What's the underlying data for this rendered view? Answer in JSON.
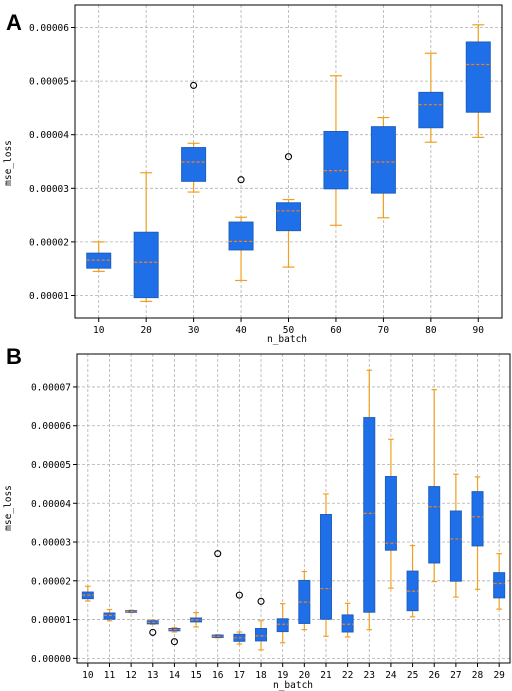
{
  "chart_data": [
    {
      "type": "boxplot",
      "panel": "A",
      "xlabel": "n_batch",
      "ylabel": "mse_loss",
      "ylim": [
        5.8e-06,
        6.42e-05
      ],
      "yticks": [
        1e-05,
        2e-05,
        3e-05,
        4e-05,
        5e-05,
        6e-05
      ],
      "ytick_labels": [
        "0.00001",
        "0.00002",
        "0.00003",
        "0.00004",
        "0.00005",
        "0.00006"
      ],
      "grid": true,
      "box_color": "#1f6fe8",
      "whisker_color": "#f0a020",
      "median_color": "#ff7f0e",
      "categories": [
        "10",
        "20",
        "30",
        "40",
        "50",
        "60",
        "70",
        "80",
        "90"
      ],
      "boxes": [
        {
          "min": 1.45e-05,
          "q1": 1.51e-05,
          "median": 1.66e-05,
          "q3": 1.79e-05,
          "max": 2e-05,
          "fliers": []
        },
        {
          "min": 8.9e-06,
          "q1": 9.6e-06,
          "median": 1.62e-05,
          "q3": 2.18e-05,
          "max": 3.29e-05,
          "fliers": []
        },
        {
          "min": 2.93e-05,
          "q1": 3.13e-05,
          "median": 3.49e-05,
          "q3": 3.76e-05,
          "max": 3.84e-05,
          "fliers": [
            4.92e-05
          ]
        },
        {
          "min": 1.28e-05,
          "q1": 1.85e-05,
          "median": 2.01e-05,
          "q3": 2.37e-05,
          "max": 2.46e-05,
          "fliers": [
            3.16e-05
          ]
        },
        {
          "min": 1.53e-05,
          "q1": 2.21e-05,
          "median": 2.58e-05,
          "q3": 2.73e-05,
          "max": 2.79e-05,
          "fliers": [
            3.59e-05
          ]
        },
        {
          "min": 2.31e-05,
          "q1": 2.99e-05,
          "median": 3.33e-05,
          "q3": 4.06e-05,
          "max": 5.1e-05,
          "fliers": []
        },
        {
          "min": 2.45e-05,
          "q1": 2.91e-05,
          "median": 3.49e-05,
          "q3": 4.15e-05,
          "max": 4.32e-05,
          "fliers": []
        },
        {
          "min": 3.86e-05,
          "q1": 4.13e-05,
          "median": 4.56e-05,
          "q3": 4.79e-05,
          "max": 5.52e-05,
          "fliers": []
        },
        {
          "min": 3.95e-05,
          "q1": 4.42e-05,
          "median": 5.31e-05,
          "q3": 5.73e-05,
          "max": 6.05e-05,
          "fliers": []
        }
      ]
    },
    {
      "type": "boxplot",
      "panel": "B",
      "xlabel": "n_batch",
      "ylabel": "mse_loss",
      "ylim": [
        -1.2e-06,
        7.85e-05
      ],
      "yticks": [
        0.0,
        1e-05,
        2e-05,
        3e-05,
        4e-05,
        5e-05,
        6e-05,
        7e-05
      ],
      "ytick_labels": [
        "0.00000",
        "0.00001",
        "0.00002",
        "0.00003",
        "0.00004",
        "0.00005",
        "0.00006",
        "0.00007"
      ],
      "grid": true,
      "box_color": "#1f6fe8",
      "whisker_color": "#f0a020",
      "median_color": "#ff7f0e",
      "categories": [
        "10",
        "11",
        "12",
        "13",
        "14",
        "15",
        "16",
        "17",
        "18",
        "19",
        "20",
        "21",
        "22",
        "23",
        "24",
        "25",
        "26",
        "27",
        "28",
        "29"
      ],
      "boxes": [
        {
          "min": 1.48e-05,
          "q1": 1.54e-05,
          "median": 1.63e-05,
          "q3": 1.71e-05,
          "max": 1.86e-05,
          "fliers": []
        },
        {
          "min": 9.7e-06,
          "q1": 1.01e-05,
          "median": 1.11e-05,
          "q3": 1.17e-05,
          "max": 1.26e-05,
          "fliers": []
        },
        {
          "min": 1.18e-05,
          "q1": 1.19e-05,
          "median": 1.21e-05,
          "q3": 1.23e-05,
          "max": 1.24e-05,
          "fliers": []
        },
        {
          "min": 8.8e-06,
          "q1": 8.9e-06,
          "median": 9.3e-06,
          "q3": 9.7e-06,
          "max": 9.9e-06,
          "fliers": [
            6.7e-06
          ]
        },
        {
          "min": 6.8e-06,
          "q1": 7.1e-06,
          "median": 7.4e-06,
          "q3": 7.7e-06,
          "max": 7.9e-06,
          "fliers": [
            4.3e-06
          ]
        },
        {
          "min": 8.1e-06,
          "q1": 9.4e-06,
          "median": 9.9e-06,
          "q3": 1.04e-05,
          "max": 1.18e-05,
          "fliers": []
        },
        {
          "min": 5.3e-06,
          "q1": 5.4e-06,
          "median": 5.7e-06,
          "q3": 6e-06,
          "max": 6.1e-06,
          "fliers": [
            2.7e-05
          ]
        },
        {
          "min": 3.7e-06,
          "q1": 4.4e-06,
          "median": 5.3e-06,
          "q3": 6.2e-06,
          "max": 6.8e-06,
          "fliers": [
            1.63e-05
          ]
        },
        {
          "min": 2.2e-06,
          "q1": 4.5e-06,
          "median": 5.8e-06,
          "q3": 7.7e-06,
          "max": 9.7e-06,
          "fliers": [
            1.47e-05
          ]
        },
        {
          "min": 4e-06,
          "q1": 6.9e-06,
          "median": 8.8e-06,
          "q3": 1.02e-05,
          "max": 1.41e-05,
          "fliers": []
        },
        {
          "min": 7.4e-06,
          "q1": 9e-06,
          "median": 1.45e-05,
          "q3": 2.01e-05,
          "max": 2.24e-05,
          "fliers": []
        },
        {
          "min": 5.7e-06,
          "q1": 1.01e-05,
          "median": 1.8e-05,
          "q3": 3.71e-05,
          "max": 4.24e-05,
          "fliers": []
        },
        {
          "min": 5.5e-06,
          "q1": 6.8e-06,
          "median": 8.8e-06,
          "q3": 1.12e-05,
          "max": 1.42e-05,
          "fliers": []
        },
        {
          "min": 7.4e-06,
          "q1": 1.19e-05,
          "median": 3.74e-05,
          "q3": 6.21e-05,
          "max": 7.43e-05,
          "fliers": []
        },
        {
          "min": 1.81e-05,
          "q1": 2.79e-05,
          "median": 2.97e-05,
          "q3": 4.69e-05,
          "max": 5.65e-05,
          "fliers": []
        },
        {
          "min": 1.07e-05,
          "q1": 1.23e-05,
          "median": 1.73e-05,
          "q3": 2.25e-05,
          "max": 2.91e-05,
          "fliers": []
        },
        {
          "min": 1.98e-05,
          "q1": 2.46e-05,
          "median": 3.91e-05,
          "q3": 4.43e-05,
          "max": 6.93e-05,
          "fliers": []
        },
        {
          "min": 1.58e-05,
          "q1": 1.99e-05,
          "median": 3.08e-05,
          "q3": 3.8e-05,
          "max": 4.75e-05,
          "fliers": []
        },
        {
          "min": 1.78e-05,
          "q1": 2.9e-05,
          "median": 3.65e-05,
          "q3": 4.3e-05,
          "max": 4.68e-05,
          "fliers": []
        },
        {
          "min": 1.27e-05,
          "q1": 1.56e-05,
          "median": 1.93e-05,
          "q3": 2.21e-05,
          "max": 2.7e-05,
          "fliers": []
        }
      ]
    }
  ]
}
